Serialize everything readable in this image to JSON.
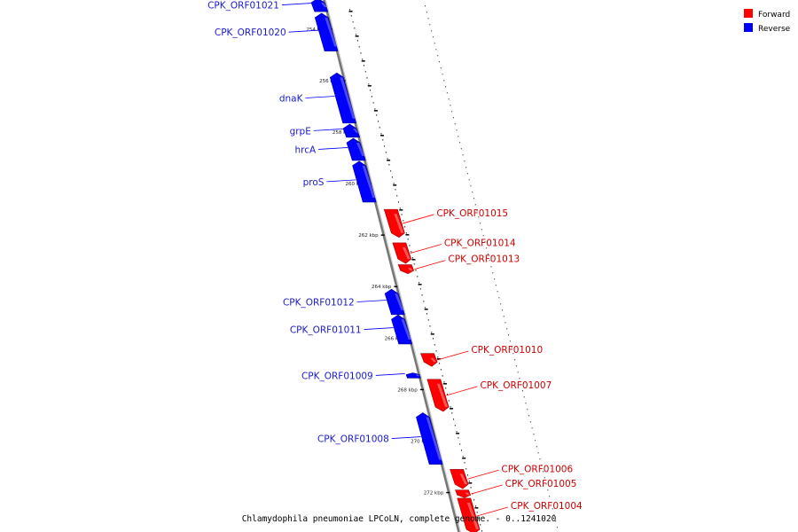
{
  "colors": {
    "forward": "#ff0000",
    "reverse": "#0000ff",
    "forward_text": "#cc0000",
    "reverse_text": "#1a1acc",
    "backbone": "#888888"
  },
  "legend": [
    {
      "label": "Forward",
      "color": "#ff0000"
    },
    {
      "label": "Reverse",
      "color": "#0000ff"
    }
  ],
  "caption": "Chlamydophila pneumoniae LPCoLN, complete genome. - 0..1241020",
  "axis": {
    "start_kbp": 252.8,
    "end_kbp": 273.6,
    "unit": "kbp"
  },
  "ticks": [
    {
      "kbp": 254,
      "label": "254 kbp"
    },
    {
      "kbp": 256,
      "label": "256 kbp"
    },
    {
      "kbp": 258,
      "label": "258 kbp"
    },
    {
      "kbp": 260,
      "label": "260 kbp"
    },
    {
      "kbp": 262,
      "label": "262 kbp"
    },
    {
      "kbp": 264,
      "label": "264 kbp"
    },
    {
      "kbp": 266,
      "label": "266 kbp"
    },
    {
      "kbp": 268,
      "label": "268 kbp"
    },
    {
      "kbp": 270,
      "label": "270 kbp"
    },
    {
      "kbp": 272,
      "label": "272 kbp"
    }
  ],
  "genes": [
    {
      "name": "CPK_ORF01021",
      "strand": "reverse",
      "start": 252.8,
      "end": 253.32
    },
    {
      "name": "CPK_ORF01020",
      "strand": "reverse",
      "start": 253.38,
      "end": 254.85
    },
    {
      "name": "dnaK",
      "strand": "reverse",
      "start": 255.7,
      "end": 257.65
    },
    {
      "name": "grpE",
      "strand": "reverse",
      "start": 257.69,
      "end": 258.2
    },
    {
      "name": "hrcA",
      "strand": "reverse",
      "start": 258.24,
      "end": 259.1
    },
    {
      "name": "proS",
      "strand": "reverse",
      "start": 259.13,
      "end": 260.72
    },
    {
      "name": "CPK_ORF01015",
      "strand": "forward",
      "start": 261.0,
      "end": 262.09
    },
    {
      "name": "CPK_ORF01014",
      "strand": "forward",
      "start": 262.3,
      "end": 263.1
    },
    {
      "name": "CPK_ORF01013",
      "strand": "forward",
      "start": 263.15,
      "end": 263.5
    },
    {
      "name": "CPK_ORF01012",
      "strand": "reverse",
      "start": 264.1,
      "end": 265.09
    },
    {
      "name": "CPK_ORF01011",
      "strand": "reverse",
      "start": 265.1,
      "end": 266.23
    },
    {
      "name": "CPK_ORF01010",
      "strand": "forward",
      "start": 266.6,
      "end": 267.1
    },
    {
      "name": "CPK_ORF01009",
      "strand": "reverse",
      "start": 267.35,
      "end": 267.55
    },
    {
      "name": "CPK_ORF01007",
      "strand": "forward",
      "start": 267.6,
      "end": 268.85
    },
    {
      "name": "CPK_ORF01008",
      "strand": "reverse",
      "start": 268.9,
      "end": 270.9
    },
    {
      "name": "CPK_ORF01006",
      "strand": "forward",
      "start": 271.1,
      "end": 271.85
    },
    {
      "name": "CPK_ORF01005",
      "strand": "forward",
      "start": 271.9,
      "end": 272.2
    },
    {
      "name": "CPK_ORF01004",
      "strand": "forward",
      "start": 272.22,
      "end": 273.6
    }
  ]
}
